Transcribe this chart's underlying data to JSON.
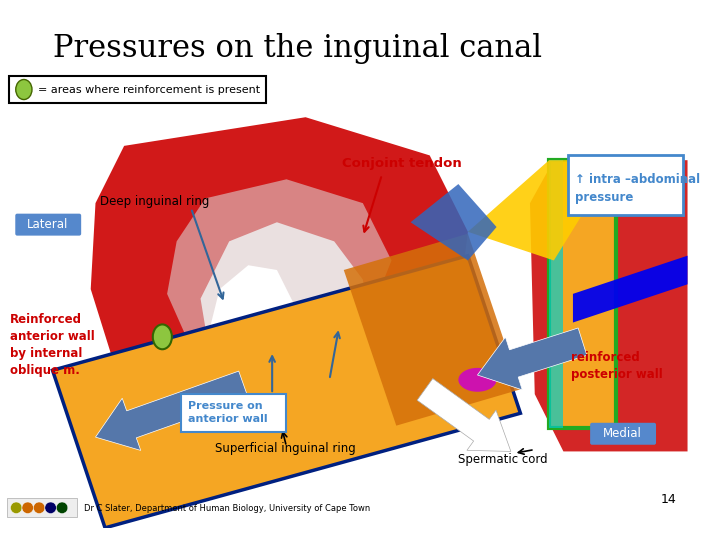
{
  "title": "Pressures on the inguinal canal",
  "title_fontsize": 22,
  "title_color": "#000000",
  "bg_color": "#ffffff",
  "legend_text": "= areas where reinforcement is present",
  "legend_ellipse_color": "#8dc63f",
  "labels": {
    "deep_inguinal_ring": "Deep inguinal ring",
    "conjoint_tendon": "Conjoint tendon",
    "intra_abdominal": "↑ intra –abdominal\npressure",
    "lateral": "Lateral",
    "medial": "Medial",
    "reinforced_anterior": "Reinforced\nanterior wall\nby internal\noblique m.",
    "reinforced_posterior": "reinforced\nposterior wall",
    "pressure_anterior": "Pressure on\nanterior wall",
    "superficial_ring": "Superficial inguinal ring",
    "spermatic_cord": "Spermatic cord",
    "page_num": "14",
    "credit": "Dr C Slater, Department of Human Biology, University of Cape Town"
  },
  "colors": {
    "red": "#cc0000",
    "orange": "#f5a623",
    "dark_orange": "#d4700a",
    "blue_arrow": "#5577aa",
    "blue_label_bg": "#5588cc",
    "green": "#8dc63f",
    "purple": "#cc00cc",
    "blue_bright": "#0000ee",
    "blue_navy": "#002080",
    "white": "#ffffff",
    "black": "#000000",
    "gray": "#888888",
    "red_dark": "#aa0000"
  }
}
